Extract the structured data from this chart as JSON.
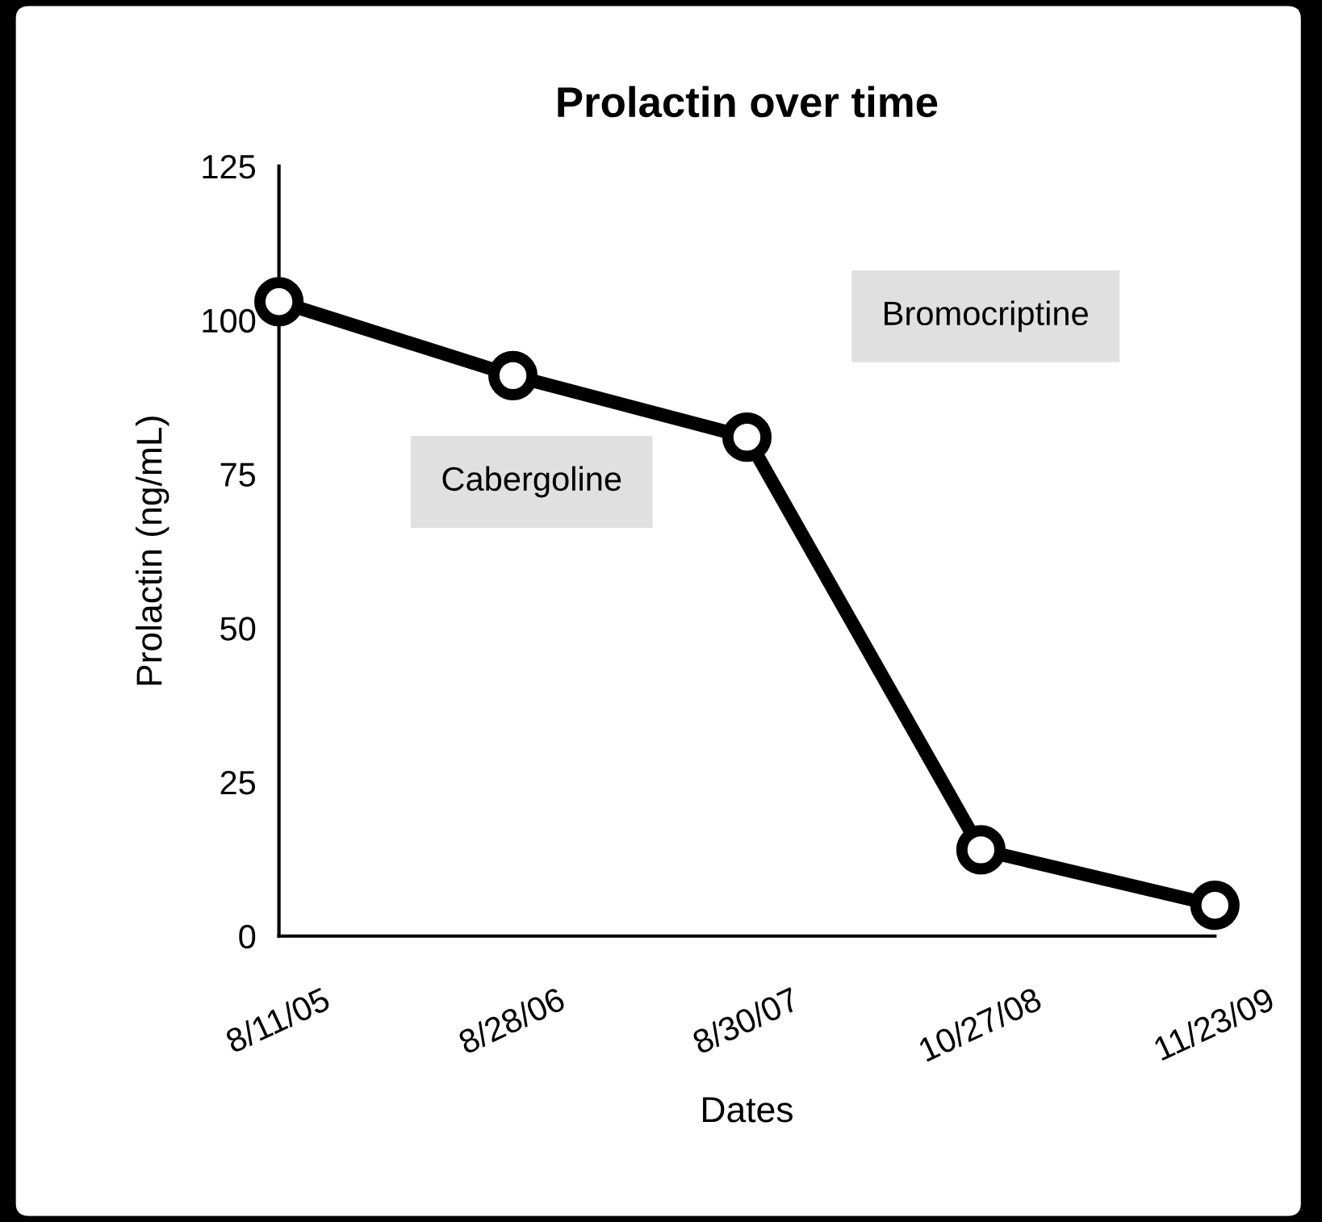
{
  "chart_data": {
    "type": "line",
    "title": "Prolactin over time",
    "xlabel": "Dates",
    "ylabel": "Prolactin (ng/mL)",
    "categories": [
      "8/11/05",
      "8/28/06",
      "8/30/07",
      "10/27/08",
      "11/23/09"
    ],
    "series": [
      {
        "color": "#000000",
        "values": [
          103,
          91,
          81,
          14,
          5
        ]
      }
    ],
    "ylim": [
      0,
      125
    ],
    "yticks": [
      0,
      25,
      50,
      75,
      100,
      125
    ],
    "grid": false,
    "legend": false,
    "marker": "circle",
    "line_style": "solid",
    "annotations": [
      "Cabergoline",
      "Bromocriptine"
    ]
  }
}
